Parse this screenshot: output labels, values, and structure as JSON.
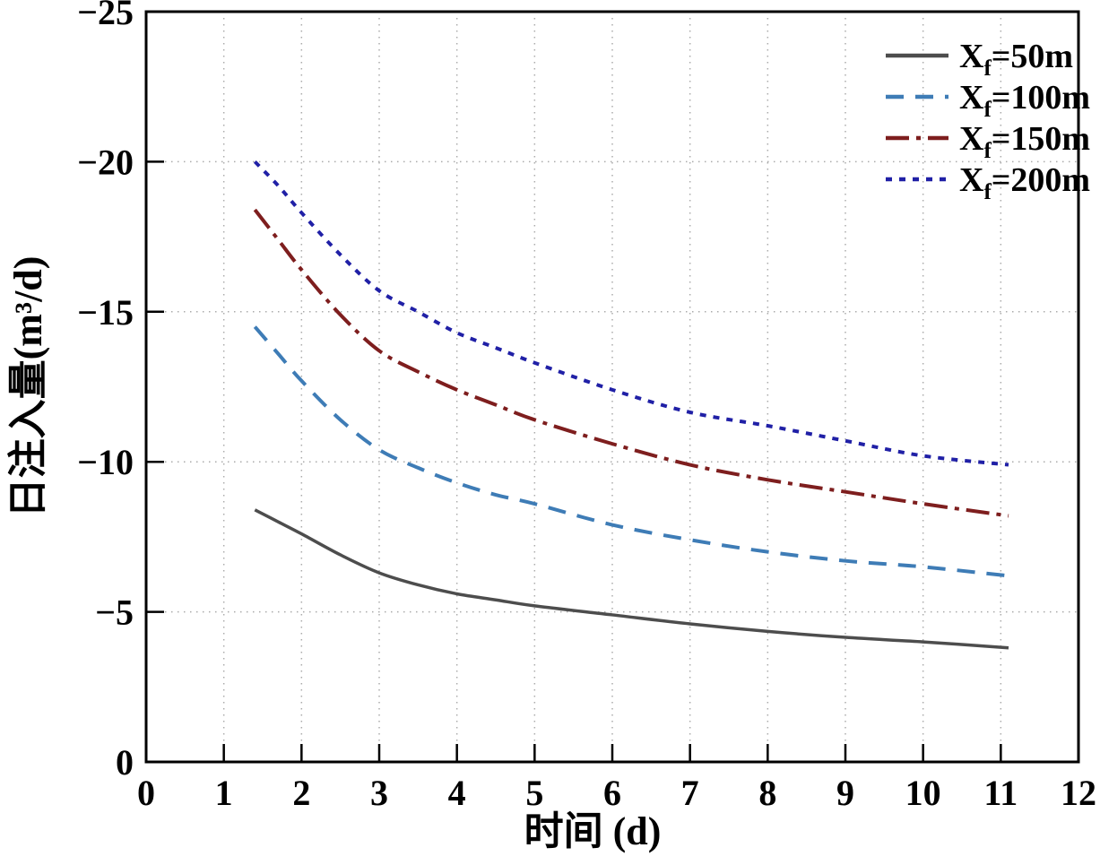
{
  "chart_data": {
    "type": "line",
    "title": "",
    "xlabel": "时间 (d)",
    "ylabel": "日注入量(m³/d)",
    "xlim": [
      0,
      12
    ],
    "ylim": [
      0,
      -25
    ],
    "y_axis_inverted": true,
    "grid_on": true,
    "grid_style": "dotted",
    "grid_x": [
      1,
      2,
      3,
      4,
      5,
      6,
      7,
      8,
      9,
      10,
      11
    ],
    "grid_y": [
      -5,
      -10,
      -15,
      -20
    ],
    "x_ticks": [
      {
        "v": 0,
        "label": "0"
      },
      {
        "v": 1,
        "label": "1"
      },
      {
        "v": 2,
        "label": "2"
      },
      {
        "v": 3,
        "label": "3"
      },
      {
        "v": 4,
        "label": "4"
      },
      {
        "v": 5,
        "label": "5"
      },
      {
        "v": 6,
        "label": "6"
      },
      {
        "v": 7,
        "label": "7"
      },
      {
        "v": 8,
        "label": "8"
      },
      {
        "v": 9,
        "label": "9"
      },
      {
        "v": 10,
        "label": "10"
      },
      {
        "v": 11,
        "label": "11"
      },
      {
        "v": 12,
        "label": "12"
      }
    ],
    "y_ticks": [
      {
        "v": 0,
        "label": "0"
      },
      {
        "v": -5,
        "label": "−5"
      },
      {
        "v": -10,
        "label": "−10"
      },
      {
        "v": -15,
        "label": "−15"
      },
      {
        "v": -20,
        "label": "−20"
      },
      {
        "v": -25,
        "label": "−25"
      }
    ],
    "legend_position": "top-right-inside",
    "x": [
      1.4,
      1.7,
      2,
      2.5,
      3,
      3.5,
      4,
      4.5,
      5,
      6,
      7,
      8,
      9,
      10,
      11.1
    ],
    "series": [
      {
        "id": "xf-50m",
        "label": {
          "pre": "X",
          "sub": "f",
          "post": "=50m"
        },
        "label_flat": "Xf=50m",
        "color": "#4d4d4d",
        "line_style": "solid",
        "dash": "",
        "width": 3.5,
        "values": [
          -8.4,
          -8.0,
          -7.6,
          -6.9,
          -6.3,
          -5.9,
          -5.6,
          -5.4,
          -5.2,
          -4.9,
          -4.6,
          -4.35,
          -4.15,
          -4.0,
          -3.8
        ]
      },
      {
        "id": "xf-100m",
        "label": {
          "pre": "X",
          "sub": "f",
          "post": "=100m"
        },
        "label_flat": "Xf=100m",
        "color": "#3e7cb6",
        "line_style": "dashed",
        "dash": "20 13",
        "width": 4,
        "values": [
          -14.5,
          -13.6,
          -12.7,
          -11.4,
          -10.4,
          -9.8,
          -9.3,
          -8.9,
          -8.6,
          -7.9,
          -7.4,
          -7.0,
          -6.7,
          -6.5,
          -6.2
        ]
      },
      {
        "id": "xf-150m",
        "label": {
          "pre": "X",
          "sub": "f",
          "post": "=150m"
        },
        "label_flat": "Xf=150m",
        "color": "#7e1e1e",
        "line_style": "dash-dot",
        "dash": "26 8 5 8",
        "width": 4,
        "values": [
          -18.4,
          -17.4,
          -16.4,
          -14.9,
          -13.7,
          -13.0,
          -12.4,
          -11.9,
          -11.4,
          -10.6,
          -9.9,
          -9.4,
          -9.0,
          -8.6,
          -8.2
        ]
      },
      {
        "id": "xf-200m",
        "label": {
          "pre": "X",
          "sub": "f",
          "post": "=200m"
        },
        "label_flat": "Xf=200m",
        "color": "#2020a6",
        "line_style": "dotted",
        "dash": "7 8",
        "width": 4,
        "values": [
          -20.0,
          -19.2,
          -18.3,
          -16.9,
          -15.7,
          -15.0,
          -14.3,
          -13.8,
          -13.3,
          -12.4,
          -11.65,
          -11.2,
          -10.7,
          -10.2,
          -9.9
        ]
      }
    ],
    "colors": {
      "background": "#ffffff",
      "frame": "#000000",
      "grid": "#ababab",
      "text": "#000000"
    }
  }
}
